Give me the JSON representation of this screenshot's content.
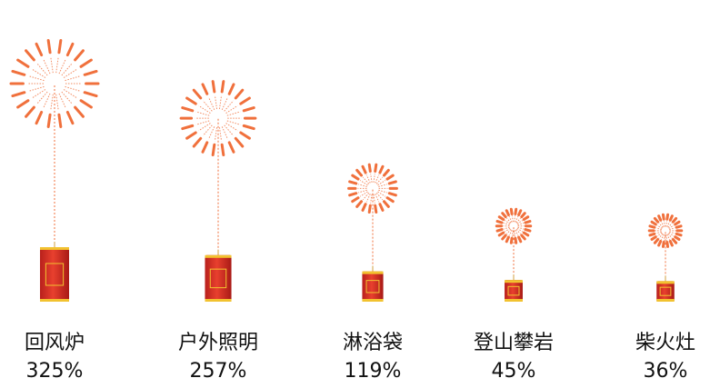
{
  "chart_data": {
    "type": "firework",
    "categories": [
      "回风炉",
      "户外照明",
      "淋浴袋",
      "登山攀岩",
      "柴火灶"
    ],
    "values": [
      325,
      257,
      119,
      45,
      36
    ],
    "value_labels": [
      "325%",
      "257%",
      "119%",
      "45%",
      "36%"
    ],
    "color": "#f0703c"
  }
}
